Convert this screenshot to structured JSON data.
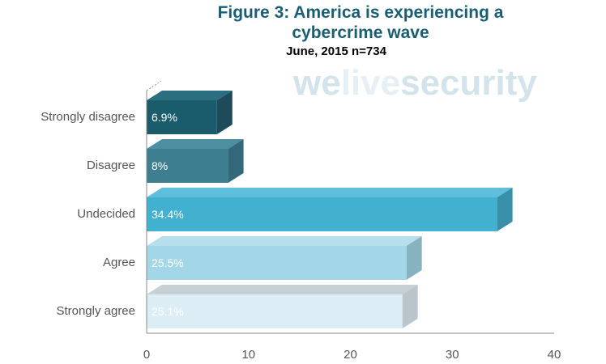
{
  "chart_data": {
    "type": "bar",
    "orientation": "horizontal",
    "title_line1": "Figure 3: America is experiencing a",
    "title_line2": "cybercrime wave",
    "subtitle": "June, 2015 n=734",
    "watermark": {
      "part1": "we",
      "part2": "live",
      "part3": "security"
    },
    "categories": [
      "Strongly disagree",
      "Disagree",
      "Undecided",
      "Agree",
      "Strongly agree"
    ],
    "values": [
      6.9,
      8,
      34.4,
      25.5,
      25.1
    ],
    "labels": [
      "6.9%",
      "8%",
      "34.4%",
      "25.5%",
      "25.1%"
    ],
    "x_ticks": [
      "0",
      "10",
      "20",
      "30",
      "40"
    ],
    "xlim": [
      0,
      40
    ],
    "grid": false,
    "colors": {
      "front": [
        "#1a5b6c",
        "#3d7f91",
        "#41b1cf",
        "#a3d6e6",
        "#dcedf5"
      ],
      "side": [
        "#1d4b59",
        "#33677a",
        "#3890a8",
        "#87b3c1",
        "#b9c5cb"
      ],
      "top": [
        "#2a6e80",
        "#4d8fa1",
        "#5dbfd9",
        "#b7dfeb",
        "#c6d0d5"
      ],
      "label": [
        "#ffffff",
        "#ffffff",
        "#ffffff",
        "#ffffff",
        "#ffffff"
      ]
    }
  }
}
